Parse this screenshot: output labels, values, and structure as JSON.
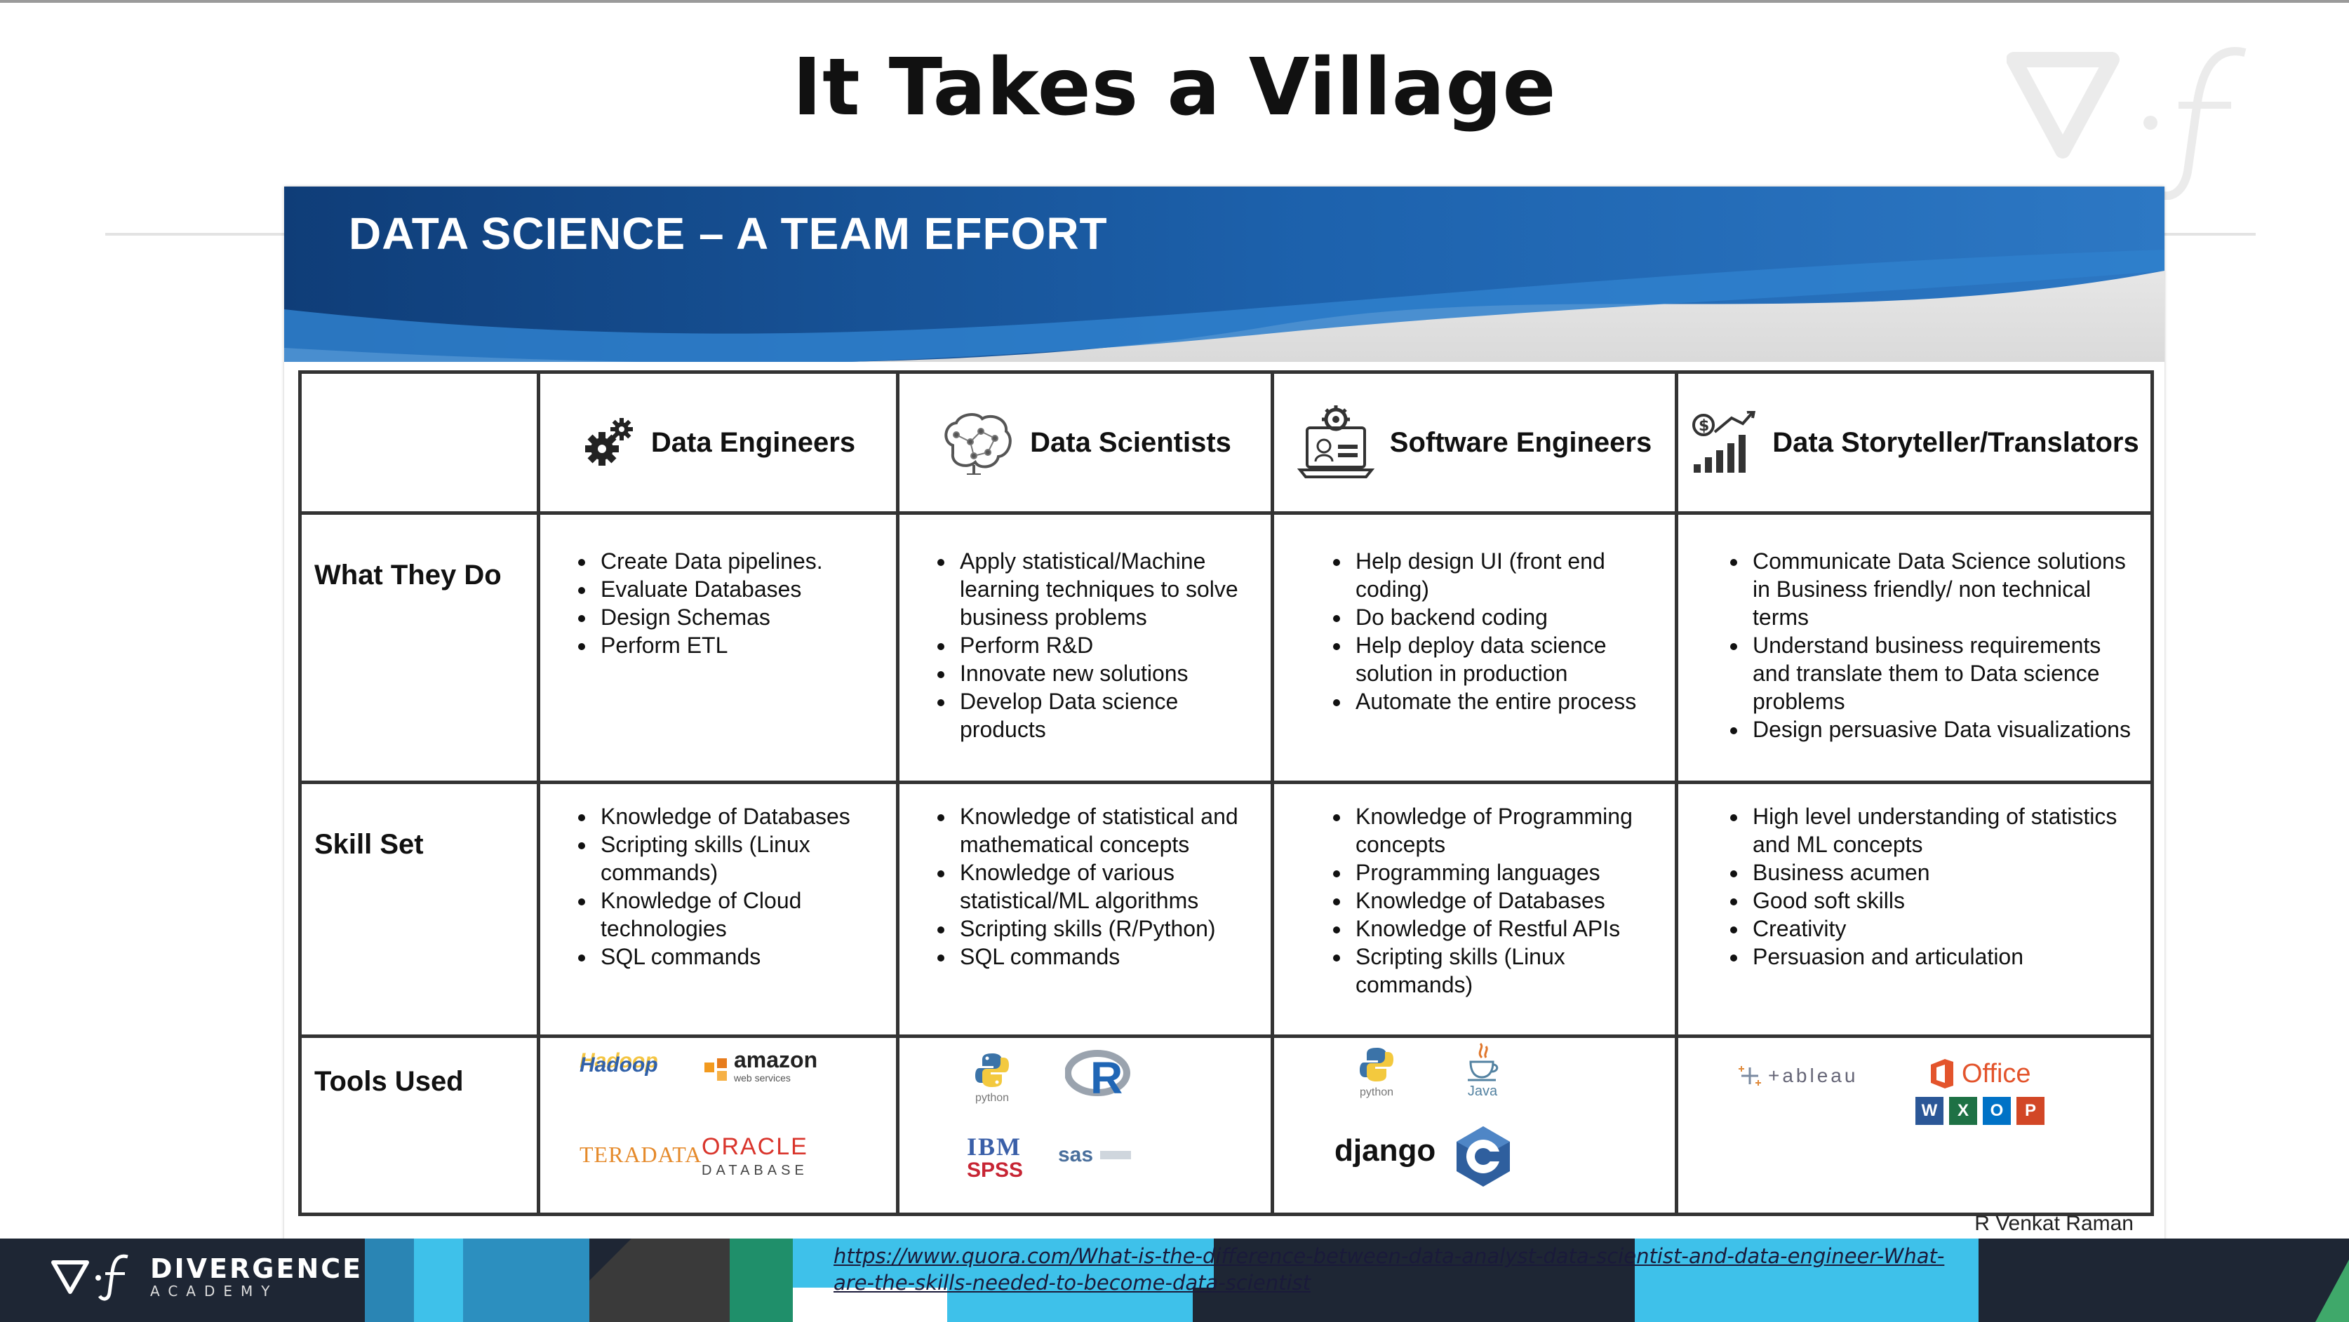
{
  "page": {
    "title": "It Takes a Village"
  },
  "slide": {
    "banner_title": "DATA SCIENCE – A TEAM EFFORT",
    "credit": "R Venkat Raman",
    "columns": [
      {
        "label": "",
        "icon": "blank"
      },
      {
        "label": "Data Engineers",
        "icon": "gears-icon"
      },
      {
        "label": "Data Scientists",
        "icon": "brain-icon"
      },
      {
        "label": "Software Engineers",
        "icon": "laptop-gear-icon"
      },
      {
        "label": "Data Storyteller/Translators",
        "icon": "growth-chart-icon"
      }
    ],
    "rows": {
      "what": {
        "label": "What They Do",
        "cells": [
          [
            "Create Data pipelines.",
            "Evaluate Databases",
            "Design Schemas",
            "Perform ETL"
          ],
          [
            "Apply statistical/Machine learning techniques to solve business problems",
            "Perform R&D",
            "Innovate new solutions",
            "Develop Data science products"
          ],
          [
            "Help design UI (front end coding)",
            "Do backend coding",
            "Help deploy data science solution in production",
            "Automate the entire process"
          ],
          [
            "Communicate Data Science solutions in Business friendly/ non technical terms",
            "Understand business requirements and translate them to Data science problems",
            "Design persuasive Data visualizations"
          ]
        ]
      },
      "skill": {
        "label": "Skill Set",
        "cells": [
          [
            "Knowledge of Databases",
            "Scripting skills (Linux commands)",
            "Knowledge of Cloud technologies",
            "SQL commands"
          ],
          [
            "Knowledge of statistical and mathematical concepts",
            "Knowledge of various statistical/ML algorithms",
            "Scripting skills (R/Python)",
            "SQL commands"
          ],
          [
            "Knowledge of Programming concepts",
            "Programming languages",
            "Knowledge of Databases",
            "Knowledge of Restful APIs",
            "Scripting skills (Linux commands)"
          ],
          [
            "High level understanding of statistics and ML concepts",
            "Business acumen",
            "Good soft skills",
            "Creativity",
            "Persuasion and articulation"
          ]
        ]
      },
      "tools": {
        "label": "Tools Used",
        "logos": {
          "hadoop": "Hadoop",
          "amazon": "amazon",
          "amazon_sub": "web services",
          "teradata": "TERADATA",
          "oracle": "ORACLE",
          "oracle_sub": "DATABASE",
          "python": "python",
          "r": "R",
          "ibm": "IBM",
          "spss": "SPSS",
          "sas": "sas",
          "java": "Java",
          "django": "django",
          "cpp": "C",
          "tableau": "+ableau",
          "office": "Office"
        }
      }
    },
    "url": "https://www.quora.com/What-is-the-difference-between-data-analyst-data-scientist-and-data-engineer-What-are-the-skills-needed-to-become-data-scientist"
  },
  "footer": {
    "brand_name": "DIVERGENCE",
    "brand_sub": "ACADEMY"
  },
  "colors": {
    "banner_dark": "#0f3d78",
    "banner_mid": "#1e68b4",
    "footer_bg": "#1e2634",
    "accent_cyan": "#3ec1ea"
  }
}
